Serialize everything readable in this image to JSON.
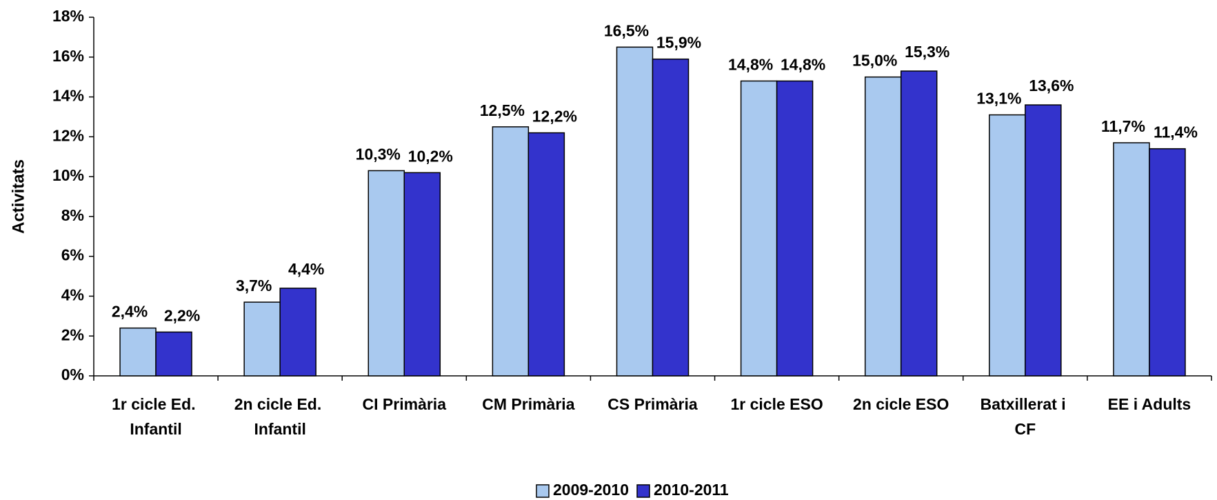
{
  "chart_data": {
    "type": "bar",
    "y_label": "Activitats",
    "categories": [
      "1r cicle Ed. Infantil",
      "2n cicle Ed. Infantil",
      "CI Primària",
      "CM Primària",
      "CS Primària",
      "1r cicle ESO",
      "2n cicle ESO",
      "Batxillerat i CF",
      "EE i Adults"
    ],
    "series": [
      {
        "name": "2009-2010",
        "color": "#a9c9ef",
        "values": [
          2.4,
          3.7,
          10.3,
          12.5,
          16.5,
          14.8,
          15.0,
          13.1,
          11.7
        ],
        "value_labels": [
          "2,4%",
          "3,7%",
          "10,3%",
          "12,5%",
          "16,5%",
          "14,8%",
          "15,0%",
          "13,1%",
          "11,7%"
        ]
      },
      {
        "name": "2010-2011",
        "color": "#3333cc",
        "values": [
          2.2,
          4.4,
          10.2,
          12.2,
          15.9,
          14.8,
          15.3,
          13.6,
          11.4
        ],
        "value_labels": [
          "2,2%",
          "4,4%",
          "10,2%",
          "12,2%",
          "15,9%",
          "14,8%",
          "15,3%",
          "13,6%",
          "11,4%"
        ]
      }
    ],
    "ylim": [
      0,
      18
    ],
    "yticks": [
      {
        "value": 0,
        "label": "0%"
      },
      {
        "value": 2,
        "label": "2%"
      },
      {
        "value": 4,
        "label": "4%"
      },
      {
        "value": 6,
        "label": "6%"
      },
      {
        "value": 8,
        "label": "8%"
      },
      {
        "value": 10,
        "label": "10%"
      },
      {
        "value": 12,
        "label": "12%"
      },
      {
        "value": 14,
        "label": "14%"
      },
      {
        "value": 16,
        "label": "16%"
      },
      {
        "value": 18,
        "label": "18%"
      }
    ],
    "grid": false,
    "legend": "bottom"
  }
}
